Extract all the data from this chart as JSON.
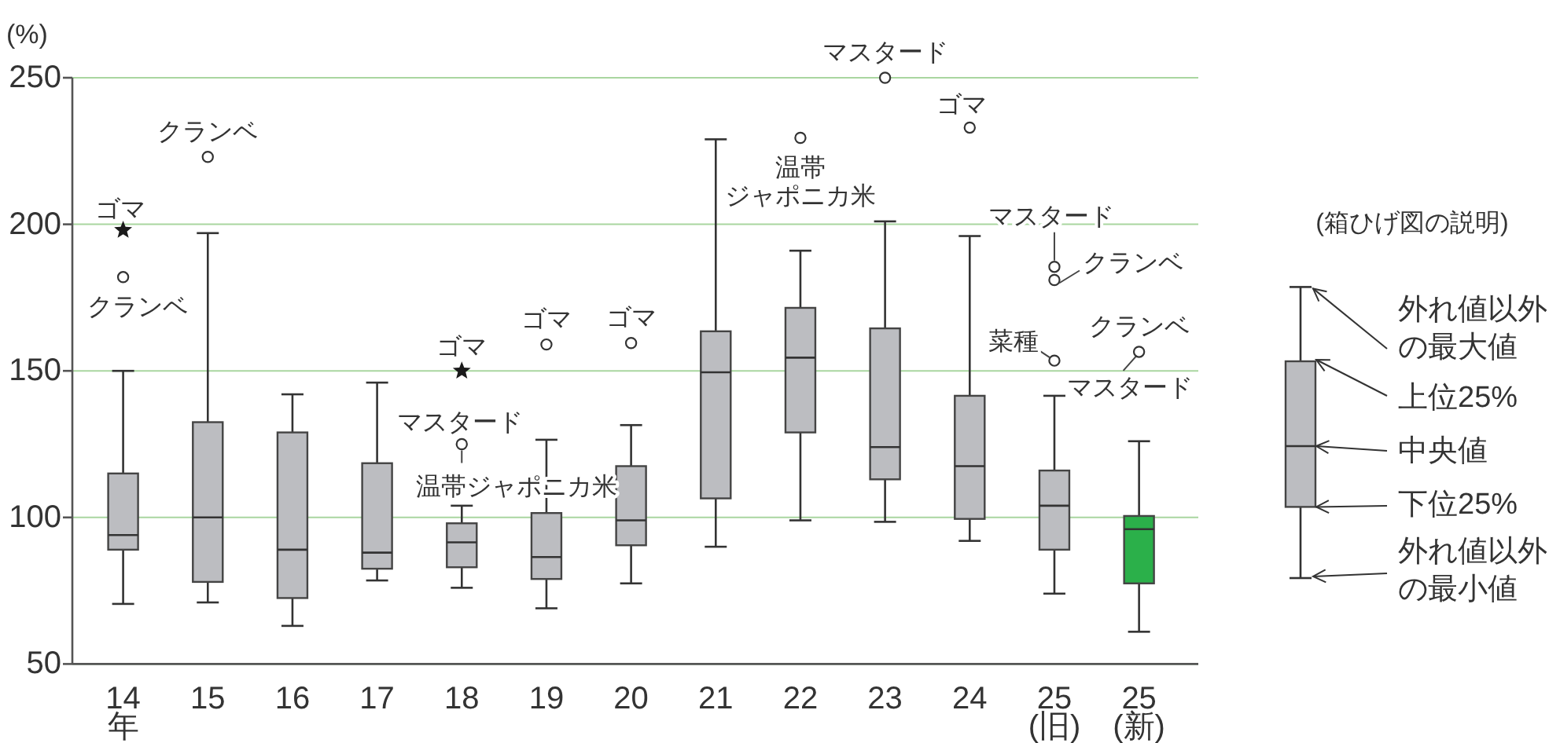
{
  "chart_data": [
    {
      "type": "box",
      "ylabel": "(%)",
      "categories": [
        "14\n年",
        "15",
        "16",
        "17",
        "18",
        "19",
        "20",
        "21",
        "22",
        "23",
        "24",
        "25\n(旧)",
        "25\n(新)"
      ],
      "boxes": [
        {
          "low": 70.5,
          "q1": 89,
          "median": 94,
          "q3": 115,
          "high": 150
        },
        {
          "low": 71,
          "q1": 78,
          "median": 100,
          "q3": 132.5,
          "high": 197
        },
        {
          "low": 63,
          "q1": 72.5,
          "median": 89,
          "q3": 129,
          "high": 142
        },
        {
          "low": 78.5,
          "q1": 82.5,
          "median": 88,
          "q3": 118.5,
          "high": 146
        },
        {
          "low": 76,
          "q1": 83,
          "median": 91.5,
          "q3": 98,
          "high": 104
        },
        {
          "low": 69,
          "q1": 79,
          "median": 86.5,
          "q3": 101.5,
          "high": 126.5
        },
        {
          "low": 77.5,
          "q1": 90.5,
          "median": 99,
          "q3": 117.5,
          "high": 131.5
        },
        {
          "low": 90,
          "q1": 106.5,
          "median": 149.5,
          "q3": 163.5,
          "high": 229
        },
        {
          "low": 99,
          "q1": 129,
          "median": 154.5,
          "q3": 171.5,
          "high": 191
        },
        {
          "low": 98.5,
          "q1": 113,
          "median": 124,
          "q3": 164.5,
          "high": 201
        },
        {
          "low": 92,
          "q1": 99.5,
          "median": 117.5,
          "q3": 141.5,
          "high": 196
        },
        {
          "low": 74,
          "q1": 89,
          "median": 104,
          "q3": 116,
          "high": 141.5
        },
        {
          "low": 61,
          "q1": 77.5,
          "median": 96,
          "q3": 100.5,
          "high": 126
        }
      ],
      "colors": [
        "#bcbdc1",
        "#bcbdc1",
        "#bcbdc1",
        "#bcbdc1",
        "#bcbdc1",
        "#bcbdc1",
        "#bcbdc1",
        "#bcbdc1",
        "#bcbdc1",
        "#bcbdc1",
        "#bcbdc1",
        "#bcbdc1",
        "#2bb04a"
      ],
      "series": [
        {
          "type": "scatter",
          "marker": "star",
          "x": [
            "14\n年",
            "18"
          ],
          "values": [
            198,
            150
          ],
          "color": "#1a1a1a"
        },
        {
          "type": "scatter",
          "marker": "circle",
          "x": [
            "14\n年",
            "15",
            "18",
            "19",
            "20",
            "22",
            "23",
            "24",
            "25\n(旧)",
            "25\n(旧)",
            "25\n(旧)",
            "25\n(新)"
          ],
          "values": [
            182,
            223,
            125,
            159,
            159.5,
            229.5,
            250,
            233,
            185.5,
            181,
            153.5,
            156.5
          ],
          "color": "#333333"
        }
      ],
      "ylim": [
        50,
        250
      ],
      "yticks": [
        50,
        100,
        150,
        200,
        250
      ],
      "grid": "y",
      "annotations": [
        {
          "text": "ゴマ",
          "x": "14\n年",
          "y": 198
        },
        {
          "text": "クランベ",
          "x": "14\n年",
          "y": 182
        },
        {
          "text": "クランベ",
          "x": "15",
          "y": 223
        },
        {
          "text": "ゴマ",
          "x": "18",
          "y": 150
        },
        {
          "text": "マスタード",
          "x": "18",
          "y": 125
        },
        {
          "text": "温帯ジャポニカ米",
          "x": "18",
          "y": 125
        },
        {
          "text": "ゴマ",
          "x": "19",
          "y": 159
        },
        {
          "text": "ゴマ",
          "x": "20",
          "y": 159.5
        },
        {
          "text": "温帯ジャポニカ米",
          "x": "22",
          "y": 229.5
        },
        {
          "text": "マスタード",
          "x": "23",
          "y": 250
        },
        {
          "text": "ゴマ",
          "x": "24",
          "y": 233
        },
        {
          "text": "マスタード",
          "x": "25\n(旧)",
          "y": 185.5
        },
        {
          "text": "クランベ",
          "x": "25\n(旧)",
          "y": 181
        },
        {
          "text": "菜種",
          "x": "25\n(旧)",
          "y": 153.5
        },
        {
          "text": "クランベ",
          "x": "25\n(新)",
          "y": 156.5
        },
        {
          "text": "マスタード",
          "x": "25\n(新)",
          "y": 156.5
        }
      ]
    },
    {
      "type": "other",
      "title": "(箱ひげ図の説明)",
      "annotations": [
        "外れ値以外の最大値",
        "上位25%",
        "中央値",
        "下位25%",
        "外れ値以外の最小値"
      ]
    }
  ]
}
